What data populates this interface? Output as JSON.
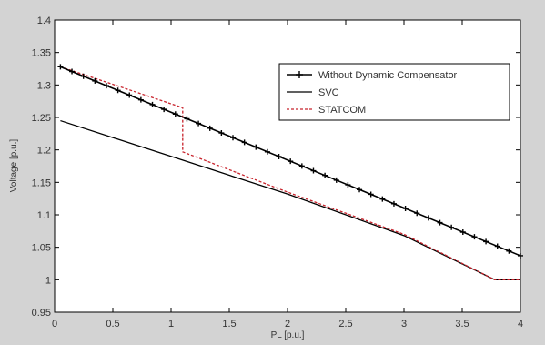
{
  "chart_data": {
    "type": "line",
    "xlabel": "PL [p.u.]",
    "ylabel": "Voltage [p.u.]",
    "xlim": [
      0,
      4
    ],
    "ylim": [
      0.95,
      1.4
    ],
    "xticks": [
      "0",
      "0.5",
      "1",
      "1.5",
      "2",
      "2.5",
      "3",
      "3.5",
      "4"
    ],
    "yticks": [
      "0.95",
      "1",
      "1.05",
      "1.1",
      "1.15",
      "1.2",
      "1.25",
      "1.3",
      "1.35",
      "1.4"
    ],
    "legend_position": "top-right",
    "grid": false,
    "series": [
      {
        "name": "Without Dynamic Compensator",
        "color": "#000000",
        "marker": "plus",
        "x": [
          0.05,
          4.0
        ],
        "y": [
          1.328,
          1.037
        ]
      },
      {
        "name": "SVC",
        "color": "#000000",
        "marker": "none",
        "x": [
          0.05,
          1.0,
          2.0,
          3.0,
          3.78,
          3.8,
          4.0
        ],
        "y": [
          1.245,
          1.19,
          1.132,
          1.068,
          1.0,
          1.0,
          1.0
        ]
      },
      {
        "name": "STATCOM",
        "color": "#c8232c",
        "marker": "none",
        "dash": true,
        "x": [
          0.05,
          1.1,
          1.1,
          2.0,
          3.0,
          3.78,
          3.8,
          4.0
        ],
        "y": [
          1.328,
          1.265,
          1.197,
          1.135,
          1.07,
          1.0,
          1.0,
          1.0
        ]
      }
    ]
  }
}
